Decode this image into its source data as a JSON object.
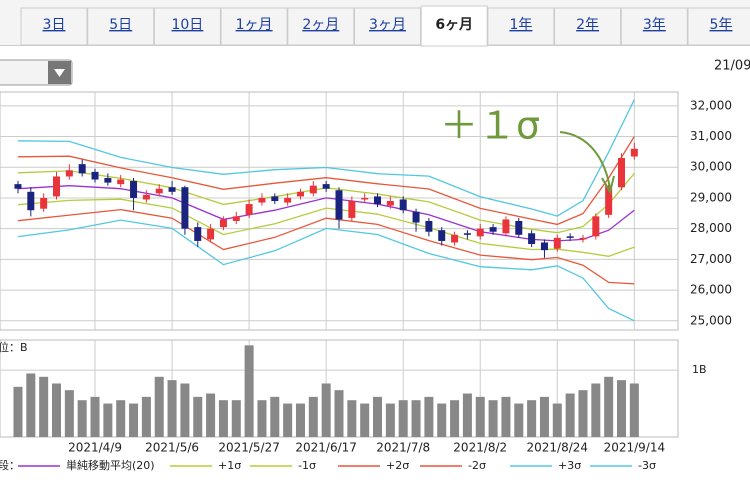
{
  "tabs": {
    "items": [
      "3日",
      "5日",
      "10日",
      "1ヶ月",
      "2ヶ月",
      "3ヶ月",
      "6ヶ月",
      "1年",
      "2年",
      "3年",
      "5年"
    ],
    "active": 6
  },
  "date_label": "21/09",
  "chart_data": {
    "type": "candlestick",
    "annotation": "＋１σ",
    "xlim": [
      -1.4,
      51.4
    ],
    "xticks": [
      {
        "value": 6,
        "label": "2021/4/9"
      },
      {
        "value": 12,
        "label": "2021/5/6"
      },
      {
        "value": 18,
        "label": "2021/5/27"
      },
      {
        "value": 24,
        "label": "2021/6/17"
      },
      {
        "value": 30,
        "label": "2021/7/8"
      },
      {
        "value": 36,
        "label": "2021/8/2"
      },
      {
        "value": 42,
        "label": "2021/8/24"
      },
      {
        "value": 48,
        "label": "2021/9/14"
      }
    ],
    "ylim": [
      24700,
      32450
    ],
    "yticks": [
      {
        "value": 25000,
        "label": "25,000"
      },
      {
        "value": 26000,
        "label": "26,000"
      },
      {
        "value": 27000,
        "label": "27,000"
      },
      {
        "value": 28000,
        "label": "28,000"
      },
      {
        "value": 29000,
        "label": "29,000"
      },
      {
        "value": 30000,
        "label": "30,000"
      },
      {
        "value": 31000,
        "label": "31,000"
      },
      {
        "value": 32000,
        "label": "32,000"
      }
    ],
    "grid": true,
    "up_color": "#e8343a",
    "down_color": "#1a237e",
    "candles": {
      "open": [
        29450,
        29200,
        28650,
        29050,
        29700,
        30100,
        29850,
        29650,
        29450,
        29550,
        28950,
        29150,
        29350,
        29350,
        28050,
        27650,
        28050,
        28250,
        28450,
        28850,
        29050,
        28850,
        29050,
        29150,
        29450,
        29250,
        28350,
        28950,
        29050,
        28750,
        28950,
        28550,
        28250,
        27950,
        27550,
        27850,
        27750,
        28050,
        27850,
        28250,
        27850,
        27550,
        27350,
        27750,
        27650,
        27750,
        28450,
        29350,
        30350
      ],
      "high": [
        29550,
        29350,
        29150,
        29850,
        30100,
        30250,
        29950,
        29800,
        29750,
        29650,
        29250,
        29450,
        29550,
        29400,
        28200,
        28150,
        28400,
        28550,
        28950,
        29150,
        29150,
        29150,
        29300,
        29550,
        29550,
        29350,
        29050,
        29150,
        29150,
        29050,
        29050,
        28650,
        28350,
        28050,
        27900,
        27950,
        28150,
        28150,
        28400,
        28350,
        27950,
        27650,
        27800,
        27850,
        27800,
        28500,
        29550,
        30450,
        30800
      ],
      "low": [
        29150,
        28400,
        28550,
        28950,
        29600,
        29700,
        29500,
        29400,
        29350,
        28600,
        28850,
        29050,
        29100,
        27800,
        27400,
        27550,
        27950,
        28150,
        28350,
        28750,
        28800,
        28750,
        28950,
        29050,
        29200,
        28000,
        28250,
        28850,
        28700,
        28650,
        28500,
        27900,
        27750,
        27450,
        27450,
        27650,
        27650,
        27800,
        27750,
        27700,
        27400,
        27050,
        27250,
        27600,
        27550,
        27650,
        28350,
        29250,
        30250
      ],
      "close": [
        29300,
        28600,
        29000,
        29700,
        29900,
        29800,
        29600,
        29500,
        29600,
        29000,
        29100,
        29300,
        29200,
        28000,
        27600,
        28000,
        28300,
        28400,
        28800,
        29000,
        28900,
        29000,
        29200,
        29400,
        29300,
        28300,
        28900,
        29000,
        28800,
        28900,
        28600,
        28200,
        27900,
        27600,
        27800,
        27800,
        28000,
        27900,
        28300,
        27800,
        27500,
        27300,
        27700,
        27700,
        27700,
        28400,
        29400,
        30300,
        30600
      ]
    },
    "bands": {
      "x": [
        0,
        4,
        8,
        12,
        16,
        20,
        24,
        28,
        32,
        36,
        40,
        42,
        44,
        46,
        48
      ],
      "series": [
        {
          "name": "単純移動平均(20)",
          "color": "#9b30d0",
          "values": [
            29300,
            29400,
            29300,
            29000,
            28300,
            28600,
            29000,
            28800,
            28450,
            27900,
            27650,
            27600,
            27650,
            27950,
            28600
          ]
        },
        {
          "name": "+1σ",
          "color": "#b7cc3c",
          "values": [
            29820,
            29880,
            29640,
            29330,
            28790,
            29040,
            29330,
            29130,
            28870,
            28280,
            27980,
            27870,
            28070,
            28800,
            29800
          ]
        },
        {
          "name": "-1σ",
          "color": "#b7cc3c",
          "values": [
            28780,
            28920,
            28960,
            28670,
            27810,
            28160,
            28670,
            28470,
            28030,
            27520,
            27320,
            27330,
            27230,
            27100,
            27400
          ]
        },
        {
          "name": "+2σ",
          "color": "#e8573a",
          "values": [
            30340,
            30360,
            29980,
            29660,
            29280,
            29480,
            29660,
            29460,
            29290,
            28660,
            28310,
            28140,
            28490,
            29650,
            31000
          ]
        },
        {
          "name": "-2σ",
          "color": "#e8573a",
          "values": [
            28260,
            28440,
            28620,
            28340,
            27320,
            27720,
            28340,
            28140,
            27610,
            27140,
            26990,
            27060,
            26810,
            26250,
            26200
          ]
        },
        {
          "name": "+3σ",
          "color": "#4fc8e0",
          "values": [
            30860,
            30840,
            30320,
            29990,
            29770,
            29920,
            29990,
            29790,
            29710,
            29040,
            28640,
            28410,
            28910,
            30500,
            32200
          ]
        },
        {
          "name": "-3σ",
          "color": "#4fc8e0",
          "values": [
            27740,
            27960,
            28280,
            28010,
            26830,
            27280,
            28010,
            27810,
            27190,
            26760,
            26660,
            26790,
            26390,
            25400,
            25000
          ]
        }
      ]
    },
    "volume": {
      "unit_label": "位：B",
      "color": "#888888",
      "ylim": [
        0,
        1.45
      ],
      "yticks": [
        {
          "value": 1,
          "label": "1B"
        }
      ],
      "values": [
        0.75,
        0.95,
        0.9,
        0.8,
        0.7,
        0.55,
        0.6,
        0.5,
        0.55,
        0.5,
        0.6,
        0.9,
        0.85,
        0.8,
        0.6,
        0.65,
        0.55,
        0.55,
        1.37,
        0.55,
        0.6,
        0.5,
        0.5,
        0.6,
        0.8,
        0.7,
        0.55,
        0.5,
        0.6,
        0.5,
        0.55,
        0.55,
        0.6,
        0.5,
        0.55,
        0.65,
        0.6,
        0.55,
        0.6,
        0.5,
        0.55,
        0.6,
        0.5,
        0.65,
        0.7,
        0.8,
        0.9,
        0.85,
        0.8
      ]
    },
    "legend_prefix": "段："
  }
}
